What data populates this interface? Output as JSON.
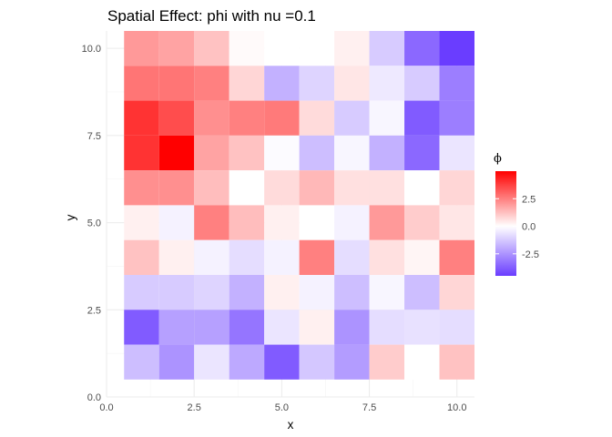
{
  "chart_data": {
    "type": "heatmap",
    "title": "Spatial Effect:  phi  with  nu =0.1",
    "xlabel": "x",
    "ylabel": "y",
    "xlim": [
      0,
      10.5
    ],
    "ylim": [
      0,
      10.5
    ],
    "x_ticks": [
      0,
      2.5,
      5,
      7.5,
      10
    ],
    "y_ticks": [
      0,
      2.5,
      5,
      7.5,
      10
    ],
    "x_tick_labels": [
      "0.0",
      "2.5",
      "5.0",
      "7.5",
      "10.0"
    ],
    "y_tick_labels": [
      "0.0",
      "2.5",
      "5.0",
      "7.5",
      "10.0"
    ],
    "x": [
      1,
      2,
      3,
      4,
      5,
      6,
      7,
      8,
      9,
      10
    ],
    "y": [
      10,
      9,
      8,
      7,
      6,
      5,
      4,
      3,
      2,
      1
    ],
    "z": [
      [
        2.0,
        1.8,
        1.2,
        0.1,
        0.0,
        0.0,
        0.3,
        -1.2,
        -3.5,
        -4.5
      ],
      [
        2.7,
        2.7,
        2.5,
        0.8,
        -1.8,
        -1.0,
        0.5,
        -0.5,
        -1.2,
        -3.0
      ],
      [
        4.0,
        3.5,
        2.2,
        2.5,
        2.6,
        0.7,
        -1.2,
        -0.2,
        -3.8,
        -3.0
      ],
      [
        4.0,
        5.0,
        1.8,
        1.2,
        -0.1,
        -1.5,
        -0.2,
        -1.8,
        -3.5,
        -0.6
      ],
      [
        2.2,
        2.2,
        1.3,
        0.0,
        0.7,
        1.4,
        0.6,
        0.6,
        0.0,
        0.8
      ],
      [
        0.3,
        -0.3,
        2.5,
        1.3,
        0.3,
        0.0,
        -0.3,
        2.0,
        1.0,
        0.5
      ],
      [
        1.2,
        0.3,
        -0.3,
        -0.8,
        -0.3,
        2.5,
        -0.8,
        0.6,
        0.2,
        2.5
      ],
      [
        -1.2,
        -1.2,
        -1.0,
        -1.8,
        0.3,
        -0.3,
        -1.5,
        -0.2,
        -1.5,
        0.8
      ],
      [
        -3.8,
        -2.2,
        -2.2,
        -3.2,
        -0.6,
        0.3,
        -2.5,
        -0.8,
        -0.7,
        -0.8
      ],
      [
        -1.5,
        -2.5,
        -0.6,
        -2.0,
        -3.8,
        -1.3,
        -2.3,
        1.0,
        0.0,
        1.2
      ]
    ],
    "legend": {
      "title": "ϕ",
      "position": "right",
      "range": [
        -4.5,
        5.0
      ],
      "breaks": [
        2.5,
        0.0,
        -2.5
      ],
      "break_labels": [
        "2.5",
        "0.0",
        "-2.5"
      ],
      "low_color": "#6a3dff",
      "mid_color": "#ffffff",
      "high_color": "#ff0000"
    },
    "grid": true
  }
}
